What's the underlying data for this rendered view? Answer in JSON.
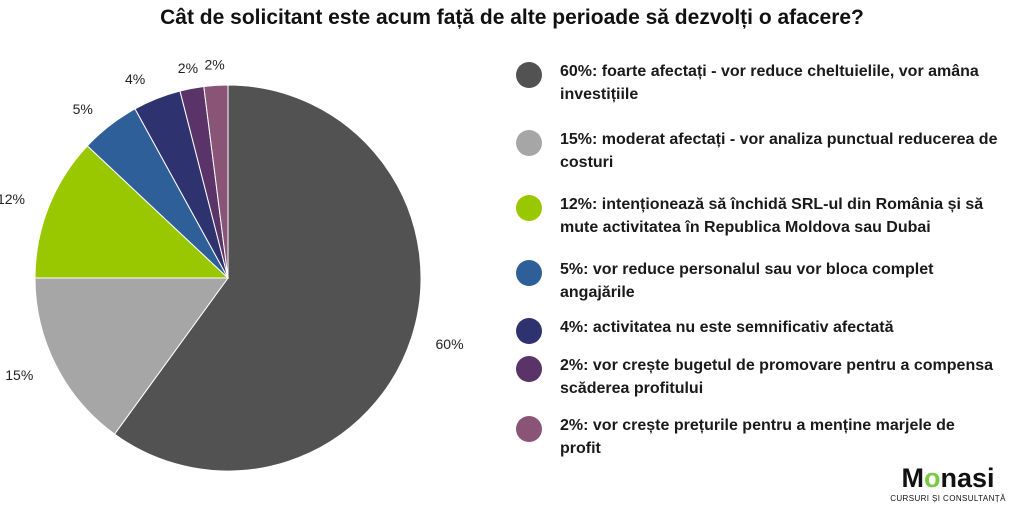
{
  "title": "Cât de solicitant este acum față de alte perioade să dezvolți o afacere?",
  "chart_data": {
    "type": "pie",
    "title": "Cât de solicitant este acum față de alte perioade să dezvolți o afacere?",
    "slices": [
      {
        "value": 60,
        "label": "60%",
        "color": "#525252",
        "legend": "60%: foarte afectați - vor reduce cheltuielile, vor amâna investițiile"
      },
      {
        "value": 15,
        "label": "15%",
        "color": "#a6a6a6",
        "legend": "15%: moderat afectați - vor analiza punctual reducerea de costuri"
      },
      {
        "value": 12,
        "label": "12%",
        "color": "#99c800",
        "legend": "12%: intenționează să închidă SRL-ul din România și să mute activitatea în Republica Moldova sau Dubai"
      },
      {
        "value": 5,
        "label": "5%",
        "color": "#2f5f99",
        "legend": "5%: vor reduce personalul sau vor bloca complet angajările"
      },
      {
        "value": 4,
        "label": "4%",
        "color": "#2e3370",
        "legend": "4%: activitatea nu este semnificativ afectată"
      },
      {
        "value": 2,
        "label": "2%",
        "color": "#5a3468",
        "legend": "2%: vor crește bugetul de promovare pentru a compensa scăderea profitului"
      },
      {
        "value": 2,
        "label": "2%",
        "color": "#8a5476",
        "legend": "2%:  vor crește prețurile pentru a menține marjele de profit"
      }
    ],
    "legend_position": "right"
  },
  "logo": {
    "name_start": "M",
    "name_o": "o",
    "name_end": "nasi",
    "tagline": "CURSURI ȘI CONSULTANȚĂ"
  }
}
